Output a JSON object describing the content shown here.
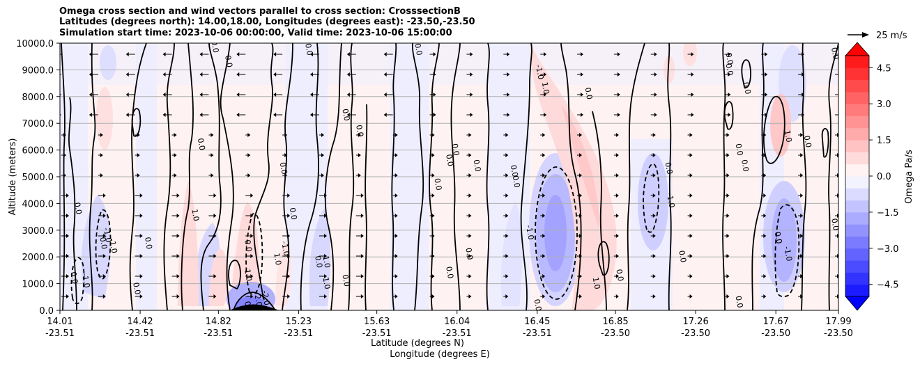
{
  "chart_data": {
    "type": "contour",
    "title_lines": [
      "Omega cross section and wind vectors parallel to cross section: CrosssectionB",
      "Latitudes (degrees north): 14.00,18.00, Longitudes (degrees east): -23.50,-23.50",
      "Simulation start time: 2023-10-06 00:00:00, Valid time: 2023-10-06 15:00:00"
    ],
    "ylabel": "Altitude (meters)",
    "xlabel_lines": [
      "Latitude (degrees N)",
      "Longitude (degrees E)"
    ],
    "y_ticks": [
      "0.0",
      "1000.0",
      "2000.0",
      "3000.0",
      "4000.0",
      "5000.0",
      "6000.0",
      "7000.0",
      "8000.0",
      "9000.0",
      "10000.0"
    ],
    "ylim": [
      0,
      10000
    ],
    "x_ticks": [
      {
        "lat": "14.01",
        "lon": "-23.51"
      },
      {
        "lat": "14.42",
        "lon": "-23.51"
      },
      {
        "lat": "14.82",
        "lon": "-23.51"
      },
      {
        "lat": "15.23",
        "lon": "-23.51"
      },
      {
        "lat": "15.63",
        "lon": "-23.51"
      },
      {
        "lat": "16.04",
        "lon": "-23.51"
      },
      {
        "lat": "16.45",
        "lon": "-23.51"
      },
      {
        "lat": "16.85",
        "lon": "-23.50"
      },
      {
        "lat": "17.26",
        "lon": "-23.50"
      },
      {
        "lat": "17.67",
        "lon": "-23.50"
      },
      {
        "lat": "17.99",
        "lon": "-23.50"
      }
    ],
    "xlim": [
      14.01,
      17.99
    ],
    "grid": "horizontal",
    "colorbar": {
      "label": "Omega Pa/s",
      "ticks": [
        "4.5",
        "3.0",
        "1.5",
        "0.0",
        "−1.5",
        "−3.0",
        "−4.5"
      ],
      "range": [
        -5.0,
        5.0
      ],
      "extend": "both",
      "colormap": "bwr",
      "positive_color": "#ff0000",
      "negative_color": "#0000ff"
    },
    "quiver_key": {
      "label": "25 m/s"
    },
    "contour_labels": [
      {
        "text": "0.0",
        "lat": 14.07,
        "alt": 1200
      },
      {
        "text": "-1.0",
        "lat": 14.13,
        "alt": 1100
      },
      {
        "text": "0.0",
        "lat": 14.09,
        "alt": 3800
      },
      {
        "text": "-1.0",
        "lat": 14.24,
        "alt": 2800
      },
      {
        "text": "0.0",
        "lat": 14.22,
        "alt": 2500
      },
      {
        "text": "-1.0",
        "lat": 14.27,
        "alt": 2400
      },
      {
        "text": "0.0",
        "lat": 14.39,
        "alt": 800
      },
      {
        "text": "0.0",
        "lat": 14.45,
        "alt": 2500
      },
      {
        "text": "1.0",
        "lat": 14.69,
        "alt": 3550
      },
      {
        "text": "0.0",
        "lat": 14.72,
        "alt": 6200
      },
      {
        "text": "0.0",
        "lat": 14.79,
        "alt": 9850
      },
      {
        "text": "0.0",
        "lat": 14.86,
        "alt": 9300
      },
      {
        "text": "0.0",
        "lat": 14.96,
        "alt": 100
      },
      {
        "text": "-2.0",
        "lat": 15.01,
        "alt": 400
      },
      {
        "text": "-2.0",
        "lat": 15.05,
        "alt": 450
      },
      {
        "text": "0.0",
        "lat": 14.96,
        "alt": 2400
      },
      {
        "text": "1.0",
        "lat": 14.96,
        "alt": 1300
      },
      {
        "text": "1.0",
        "lat": 15.11,
        "alt": 1900
      },
      {
        "text": "-1.0",
        "lat": 15.15,
        "alt": 2300
      },
      {
        "text": "0.0",
        "lat": 15.19,
        "alt": 3600
      },
      {
        "text": "0.0",
        "lat": 15.14,
        "alt": 5300
      },
      {
        "text": "0.0",
        "lat": 15.32,
        "alt": 1800
      },
      {
        "text": "1.0",
        "lat": 15.36,
        "alt": 1000
      },
      {
        "text": "1.0",
        "lat": 15.36,
        "alt": 1800
      },
      {
        "text": "0.0",
        "lat": 15.27,
        "alt": 9750
      },
      {
        "text": "0.0",
        "lat": 15.46,
        "alt": 1100
      },
      {
        "text": "0.0",
        "lat": 15.46,
        "alt": 7300
      },
      {
        "text": "0.0",
        "lat": 15.53,
        "alt": 6700
      },
      {
        "text": "0.0",
        "lat": 15.83,
        "alt": 9750
      },
      {
        "text": "0.0",
        "lat": 15.93,
        "alt": 4700
      },
      {
        "text": "0.0",
        "lat": 15.99,
        "alt": 1400
      },
      {
        "text": "0.0",
        "lat": 15.99,
        "alt": 5600
      },
      {
        "text": "0.0",
        "lat": 16.02,
        "alt": 6000
      },
      {
        "text": "0.0",
        "lat": 16.13,
        "alt": 5400
      },
      {
        "text": "0.0",
        "lat": 16.09,
        "alt": 2100
      },
      {
        "text": "0.0",
        "lat": 16.32,
        "alt": 5200
      },
      {
        "text": "0.0",
        "lat": 16.33,
        "alt": 4800
      },
      {
        "text": "-1.0",
        "lat": 16.4,
        "alt": 2900
      },
      {
        "text": "0.0",
        "lat": 16.44,
        "alt": 180
      },
      {
        "text": "-1.0",
        "lat": 16.45,
        "alt": 8900
      },
      {
        "text": "1.0",
        "lat": 16.48,
        "alt": 8300
      },
      {
        "text": "0.0",
        "lat": 16.7,
        "alt": 8100
      },
      {
        "text": "1.0",
        "lat": 16.74,
        "alt": 1000
      },
      {
        "text": "0.0",
        "lat": 16.86,
        "alt": 1300
      },
      {
        "text": "0.0",
        "lat": 17.11,
        "alt": 5300
      },
      {
        "text": "-1.0",
        "lat": 17.12,
        "alt": 4100
      },
      {
        "text": "0.0",
        "lat": 17.18,
        "alt": 2000
      },
      {
        "text": "0.0",
        "lat": 17.42,
        "alt": 9400
      },
      {
        "text": "0.0",
        "lat": 17.42,
        "alt": 9000
      },
      {
        "text": "0.0",
        "lat": 17.47,
        "alt": 6000
      },
      {
        "text": "0.0",
        "lat": 17.5,
        "alt": 5400
      },
      {
        "text": "0.0",
        "lat": 17.51,
        "alt": 8300
      },
      {
        "text": "0.0",
        "lat": 17.47,
        "alt": 300
      },
      {
        "text": "0.0",
        "lat": 17.67,
        "alt": 2700
      },
      {
        "text": "-1.0",
        "lat": 17.72,
        "alt": 2100
      },
      {
        "text": "1.0",
        "lat": 17.72,
        "alt": 6500
      },
      {
        "text": "0.0",
        "lat": 17.82,
        "alt": 6300
      },
      {
        "text": "0.0",
        "lat": 17.96,
        "alt": 9600
      },
      {
        "text": "0.0",
        "lat": 17.96,
        "alt": 3200
      }
    ]
  }
}
